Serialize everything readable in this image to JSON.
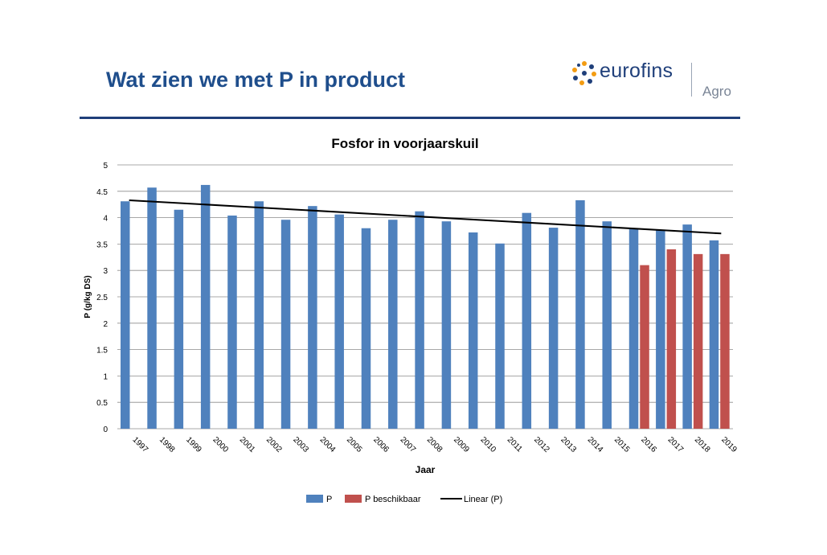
{
  "slide": {
    "title": "Wat zien we met P in product",
    "logo_word": "eurofins",
    "logo_sub": "Agro",
    "accent": "#1f4e8c"
  },
  "chart_data": {
    "type": "bar",
    "title": "Fosfor in voorjaarskuil",
    "xlabel": "Jaar",
    "ylabel": "P (g/kg DS)",
    "ylim": [
      0,
      5
    ],
    "yticks": [
      "0",
      "0.5",
      "1",
      "1.5",
      "2",
      "2.5",
      "3",
      "3.5",
      "4",
      "4.5",
      "5"
    ],
    "grid": true,
    "legend_position": "bottom",
    "categories": [
      "1997",
      "1998",
      "1999",
      "2000",
      "2001",
      "2002",
      "2003",
      "2004",
      "2005",
      "2006",
      "2007",
      "2008",
      "2009",
      "2010",
      "2011",
      "2012",
      "2013",
      "2014",
      "2015",
      "2016",
      "2017",
      "2018",
      "2019"
    ],
    "series": [
      {
        "name": "P",
        "color": "#4f81bd",
        "values": [
          4.31,
          4.57,
          4.15,
          4.62,
          4.04,
          4.31,
          3.96,
          4.22,
          4.06,
          3.8,
          3.96,
          4.12,
          3.93,
          3.72,
          3.51,
          4.09,
          3.81,
          4.33,
          3.93,
          3.8,
          3.77,
          3.87,
          3.57
        ]
      },
      {
        "name": "P beschikbaar",
        "color": "#c0504d",
        "values": [
          null,
          null,
          null,
          null,
          null,
          null,
          null,
          null,
          null,
          null,
          null,
          null,
          null,
          null,
          null,
          null,
          null,
          null,
          null,
          3.1,
          3.4,
          3.31,
          3.31
        ]
      }
    ],
    "trendline": {
      "name": "Linear (P)",
      "color": "#000000",
      "start": 4.33,
      "end": 3.7
    }
  }
}
